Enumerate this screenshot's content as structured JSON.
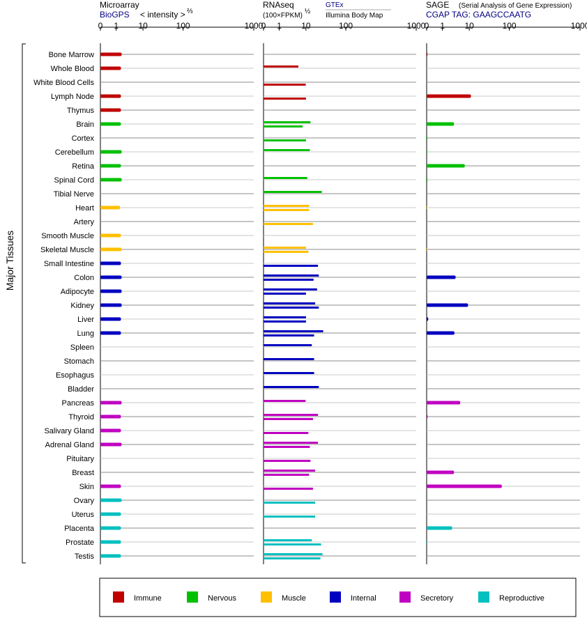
{
  "y_axis_label": "Major Tissues",
  "tissues": [
    "Bone Marrow",
    "Whole Blood",
    "White Blood Cells",
    "Lymph Node",
    "Thymus",
    "Brain",
    "Cortex",
    "Cerebellum",
    "Retina",
    "Spinal Cord",
    "Tibial Nerve",
    "Heart",
    "Artery",
    "Smooth Muscle",
    "Skeletal Muscle",
    "Small Intestine",
    "Colon",
    "Adipocyte",
    "Kidney",
    "Liver",
    "Lung",
    "Spleen",
    "Stomach",
    "Esophagus",
    "Bladder",
    "Pancreas",
    "Thyroid",
    "Salivary Gland",
    "Adrenal Gland",
    "Pituitary",
    "Breast",
    "Skin",
    "Ovary",
    "Uterus",
    "Placenta",
    "Prostate",
    "Testis"
  ],
  "tissue_groups": [
    "Immune",
    "Immune",
    "Immune",
    "Immune",
    "Immune",
    "Nervous",
    "Nervous",
    "Nervous",
    "Nervous",
    "Nervous",
    "Nervous",
    "Muscle",
    "Muscle",
    "Muscle",
    "Muscle",
    "Internal",
    "Internal",
    "Internal",
    "Internal",
    "Internal",
    "Internal",
    "Internal",
    "Internal",
    "Internal",
    "Internal",
    "Secretory",
    "Secretory",
    "Secretory",
    "Secretory",
    "Secretory",
    "Secretory",
    "Secretory",
    "Reproductive",
    "Reproductive",
    "Reproductive",
    "Reproductive",
    "Reproductive"
  ],
  "panels": {
    "microarray": {
      "title": "Microarray",
      "source": "BioGPS",
      "scale_text": "< intensity >",
      "scale_exponent": "⅔"
    },
    "rnaseq": {
      "title": "RNAseq",
      "unit_text": "(100×FPKM)",
      "unit_exponent": "½",
      "source_top": "GTEx",
      "source_bottom": "Illumina Body Map"
    },
    "sage": {
      "title": "SAGE",
      "subtitle": "(Serial Analysis of Gene Expression)",
      "tag_text": "CGAP TAG: GAAGCCAATG"
    }
  },
  "legend": [
    {
      "label": "Immune",
      "color": "#c00000"
    },
    {
      "label": "Nervous",
      "color": "#00c000"
    },
    {
      "label": "Muscle",
      "color": "#ffc000"
    },
    {
      "label": "Internal",
      "color": "#0000c0"
    },
    {
      "label": "Secretory",
      "color": "#c000c0"
    },
    {
      "label": "Reproductive",
      "color": "#00c0c0"
    }
  ],
  "chart_data": [
    {
      "type": "bar",
      "name": "microarray",
      "axis_ticks": [
        "0",
        "1",
        "10",
        "100",
        "1000"
      ],
      "xlim": [
        0,
        1000
      ],
      "categories_ref": "tissues",
      "series": [
        {
          "values": [
            1.6,
            1.5,
            null,
            1.5,
            1.5,
            1.5,
            null,
            1.6,
            1.5,
            1.6,
            null,
            1.4,
            null,
            1.5,
            1.6,
            1.5,
            1.6,
            1.6,
            1.6,
            1.5,
            1.5,
            null,
            null,
            null,
            null,
            1.6,
            1.5,
            1.5,
            1.6,
            null,
            null,
            1.5,
            1.6,
            1.5,
            1.5,
            1.5,
            1.5
          ]
        }
      ]
    },
    {
      "type": "bar",
      "name": "rnaseq",
      "axis_ticks": [
        "0",
        "1",
        "10",
        "100",
        "1000"
      ],
      "xlim": [
        0,
        1000
      ],
      "categories_ref": "tissues",
      "series": [
        {
          "name": "GTEx",
          "values": [
            null,
            5.2,
            null,
            null,
            null,
            13,
            null,
            12.5,
            null,
            10.8,
            25,
            12,
            null,
            null,
            10,
            null,
            21,
            19,
            17,
            10,
            27,
            14,
            16,
            16,
            21,
            9.7,
            20,
            null,
            20,
            null,
            17,
            null,
            null,
            null,
            null,
            14,
            26
          ]
        },
        {
          "name": "Illumina Body Map",
          "values": [
            null,
            null,
            9.8,
            10,
            null,
            7.5,
            10,
            null,
            null,
            null,
            null,
            12,
            15,
            null,
            11.5,
            20,
            15.5,
            10,
            21,
            10,
            16,
            null,
            null,
            null,
            null,
            null,
            15,
            11.5,
            12.5,
            13,
            12,
            15,
            17,
            17,
            null,
            24,
            23
          ]
        }
      ]
    },
    {
      "type": "bar",
      "name": "sage",
      "axis_ticks": [
        "0",
        "1",
        "10",
        "100",
        "1000"
      ],
      "xlim": [
        0,
        1000
      ],
      "categories_ref": "tissues",
      "series": [
        {
          "values": [
            0.05,
            null,
            null,
            11,
            null,
            2.7,
            0.04,
            0.04,
            6.8,
            0.05,
            null,
            0.02,
            null,
            null,
            0.02,
            null,
            3.1,
            null,
            9,
            0.1,
            2.8,
            null,
            null,
            null,
            null,
            4.6,
            0.06,
            null,
            null,
            null,
            2.7,
            65,
            null,
            null,
            2.3,
            0.04,
            null
          ]
        }
      ]
    }
  ]
}
